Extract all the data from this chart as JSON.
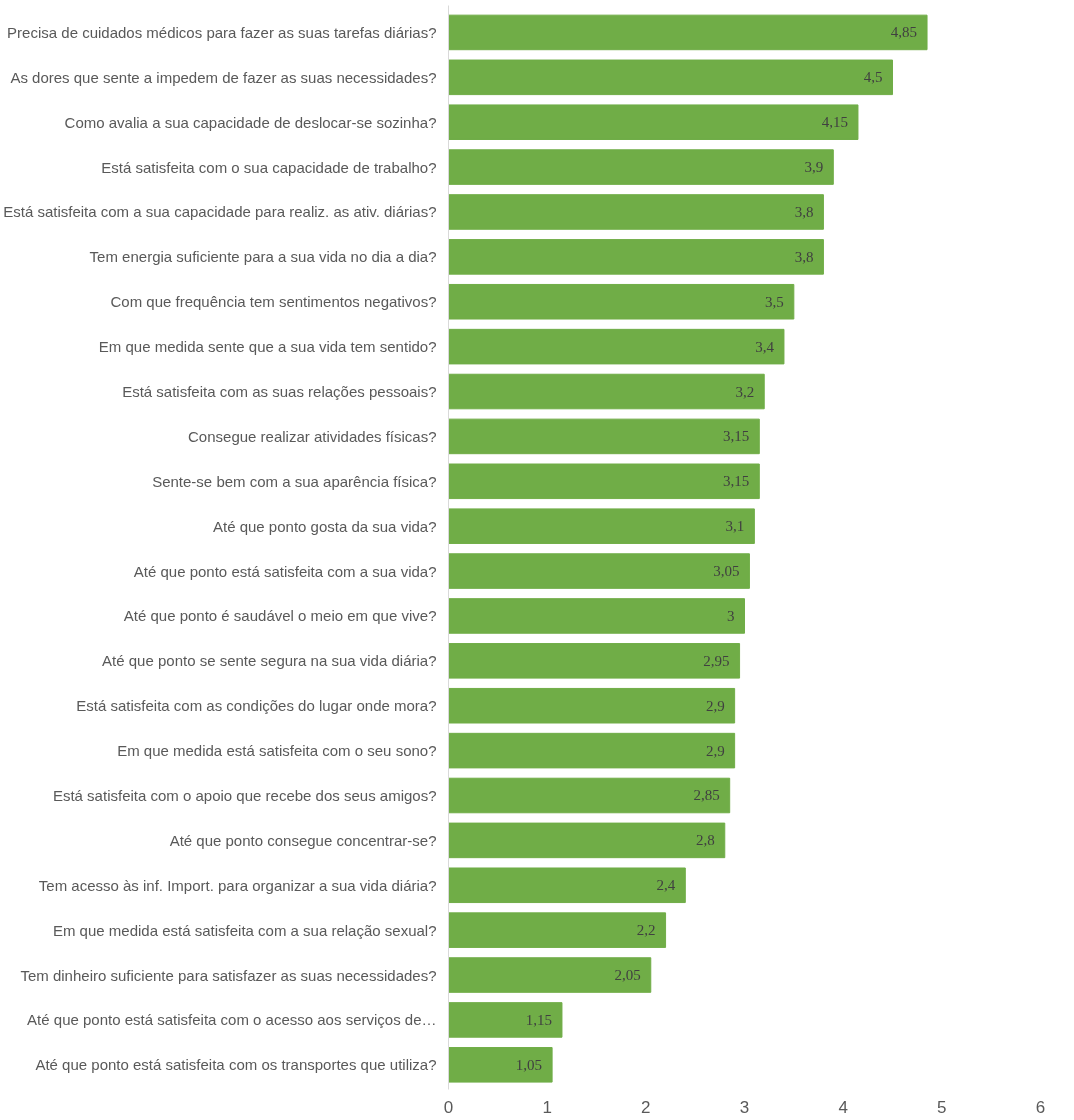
{
  "chart_data": {
    "type": "bar",
    "orientation": "horizontal",
    "categories": [
      "Precisa de cuidados médicos para fazer as suas tarefas diárias?",
      "As dores que sente a impedem de fazer as suas necessidades?",
      "Como avalia a sua capacidade de deslocar-se sozinha?",
      "Está satisfeita com o sua capacidade de trabalho?",
      "Está satisfeita com a sua capacidade para realiz. as ativ. diárias?",
      "Tem energia suficiente para a sua vida no dia a dia?",
      "Com que frequência tem sentimentos negativos?",
      "Em que medida sente que a sua vida tem sentido?",
      "Está satisfeita com as suas relações pessoais?",
      "Consegue realizar atividades físicas?",
      "Sente-se bem com a sua aparência física?",
      "Até que ponto gosta da sua vida?",
      "Até que ponto está satisfeita com a sua vida?",
      "Até que ponto é saudável o meio em que vive?",
      "Até que ponto se sente segura na sua vida diária?",
      "Está satisfeita com as condições do lugar onde mora?",
      "Em que medida está satisfeita com o seu sono?",
      "Está satisfeita com o apoio que recebe dos seus amigos?",
      "Até que ponto consegue concentrar-se?",
      "Tem acesso às inf. Import. para organizar a sua vida diária?",
      "Em que medida está satisfeita com a sua relação sexual?",
      "Tem dinheiro suficiente para satisfazer as suas necessidades?",
      "Até que ponto está satisfeita com o acesso aos serviços de…",
      "Até que ponto está satisfeita com os transportes que utiliza?"
    ],
    "values": [
      4.85,
      4.5,
      4.15,
      3.9,
      3.8,
      3.8,
      3.5,
      3.4,
      3.2,
      3.15,
      3.15,
      3.1,
      3.05,
      3,
      2.95,
      2.9,
      2.9,
      2.85,
      2.8,
      2.4,
      2.2,
      2.05,
      1.15,
      1.05
    ],
    "value_labels": [
      "4,85",
      "4,5",
      "4,15",
      "3,9",
      "3,8",
      "3,8",
      "3,5",
      "3,4",
      "3,2",
      "3,15",
      "3,15",
      "3,1",
      "3,05",
      "3",
      "2,95",
      "2,9",
      "2,9",
      "2,85",
      "2,8",
      "2,4",
      "2,2",
      "2,05",
      "1,15",
      "1,05"
    ],
    "color": "#70ad47",
    "xlim": [
      0,
      6
    ],
    "xticks": [
      0,
      1,
      2,
      3,
      4,
      5,
      6
    ],
    "grid": false
  }
}
